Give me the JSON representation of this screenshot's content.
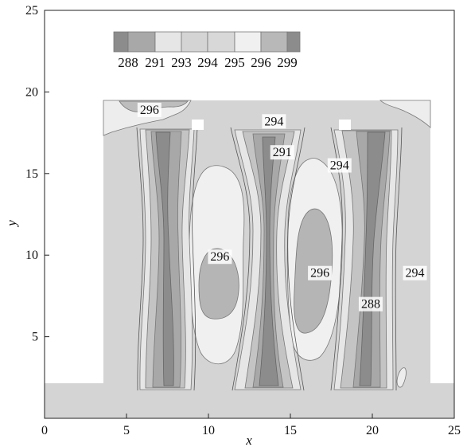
{
  "chart_data": {
    "type": "contour",
    "xlabel": "x",
    "ylabel": "y",
    "xlim": [
      0,
      25
    ],
    "ylim": [
      0,
      25
    ],
    "xticks": [
      0,
      5,
      10,
      15,
      20,
      25
    ],
    "yticks": [
      5,
      10,
      15,
      20,
      25
    ],
    "grid": false,
    "legend_position": "top-left",
    "legend_levels": [
      "288",
      "291",
      "293",
      "294",
      "295",
      "296",
      "299"
    ],
    "legend_colors": [
      "#8c8c8c",
      "#a8a8a8",
      "#e6e6e6",
      "#d4d4d4",
      "#d8d8d8",
      "#f0f0f0",
      "#b8b8b8",
      "#8c8c8c"
    ],
    "background_color": "#d4d4d4",
    "contour_labels": [
      {
        "text": "296",
        "x": 6.4,
        "y": 18.9
      },
      {
        "text": "294",
        "x": 14.0,
        "y": 18.2
      },
      {
        "text": "291",
        "x": 14.5,
        "y": 16.3
      },
      {
        "text": "294",
        "x": 18.0,
        "y": 15.5
      },
      {
        "text": "296",
        "x": 10.7,
        "y": 9.9
      },
      {
        "text": "296",
        "x": 16.8,
        "y": 8.9
      },
      {
        "text": "294",
        "x": 22.6,
        "y": 8.9
      },
      {
        "text": "288",
        "x": 19.9,
        "y": 7.0
      }
    ]
  }
}
